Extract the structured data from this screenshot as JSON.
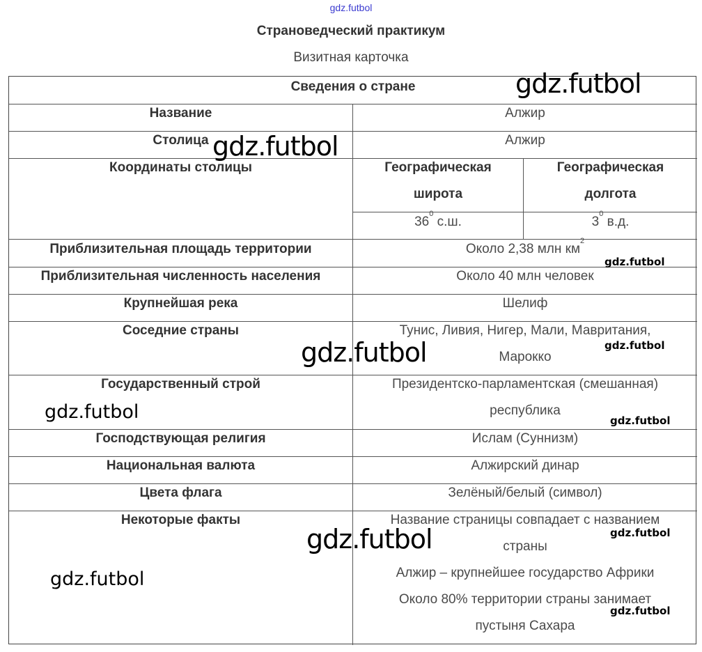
{
  "header": {
    "top_link": "gdz.futbol",
    "title": "Страноведческий практикум",
    "subtitle": "Визитная карточка"
  },
  "table": {
    "caption": "Сведения о стране",
    "rows": [
      {
        "label": "Название",
        "value": "Алжир"
      },
      {
        "label": "Столица",
        "value": "Алжир"
      },
      {
        "label": "Координаты столицы",
        "lat_header_1": "Географическая",
        "lat_header_2": "широта",
        "lon_header_1": "Географическая",
        "lon_header_2": "долгота",
        "lat_num": "36",
        "lat_sup": "0",
        "lat_unit": " с.ш.",
        "lon_num": "3",
        "lon_sup": "0",
        "lon_unit": " в.д."
      },
      {
        "label": "Приблизительная площадь территории",
        "value": "Около 2,38 млн км",
        "value_sup": "2"
      },
      {
        "label": "Приблизительная численность населения",
        "value": "Около 40 млн человек"
      },
      {
        "label": "Крупнейшая река",
        "value": "Шелиф"
      },
      {
        "label": "Соседние страны",
        "value_1": "Тунис, Ливия, Нигер, Мали, Мавритания,",
        "value_2": "Марокко"
      },
      {
        "label": "Государственный строй",
        "value_1": "Президентско-парламентская (смешанная)",
        "value_2": "республика"
      },
      {
        "label": "Господствующая религия",
        "value": "Ислам (Суннизм)"
      },
      {
        "label": "Национальная валюта",
        "value": "Алжирский динар"
      },
      {
        "label": "Цвета флага",
        "value": "Зелёный/белый (символ)"
      },
      {
        "label": "Некоторые факты",
        "lines": [
          "Название страницы совпадает с названием",
          "страны",
          "Алжир – крупнейшее государство Африки",
          "Около 80% территории страны занимает",
          "пустыня Сахара"
        ]
      }
    ]
  },
  "watermark": "gdz.futbol"
}
